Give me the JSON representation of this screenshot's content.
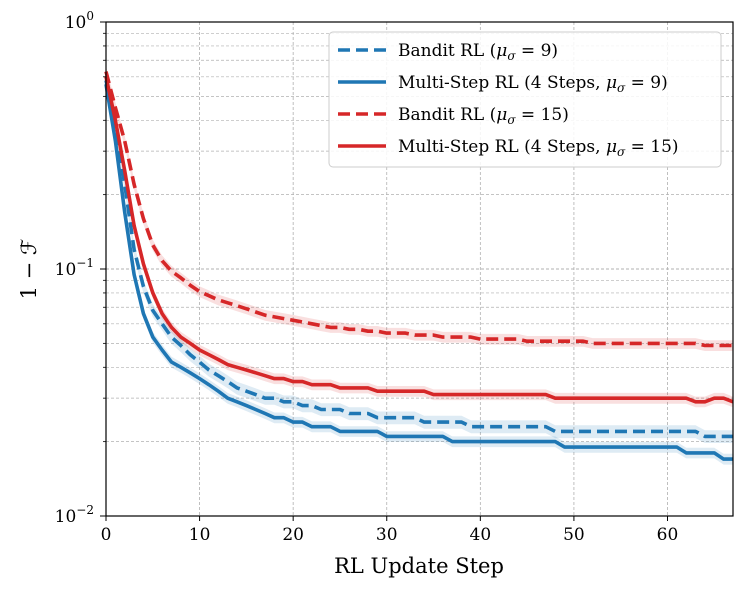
{
  "chart_data": {
    "type": "line",
    "title": "",
    "xlabel": "RL Update Step",
    "ylabel": "1 − ℱ",
    "xlim": [
      0,
      67
    ],
    "ylim": [
      0.01,
      1
    ],
    "yscale": "log",
    "grid": true,
    "legend_position": "top-right",
    "x_ticks": [
      0,
      10,
      20,
      30,
      40,
      50,
      60
    ],
    "x_tick_labels": [
      "0",
      "10",
      "20",
      "30",
      "40",
      "50",
      "60"
    ],
    "y_ticks": [
      0.01,
      0.1,
      1
    ],
    "y_tick_labels": [
      {
        "base": "10",
        "exp": "−2"
      },
      {
        "base": "10",
        "exp": "−1"
      },
      {
        "base": "10",
        "exp": "0"
      }
    ],
    "x": [
      0,
      1,
      2,
      3,
      4,
      5,
      6,
      7,
      8,
      9,
      10,
      11,
      12,
      13,
      14,
      15,
      16,
      17,
      18,
      19,
      20,
      21,
      22,
      23,
      24,
      25,
      26,
      27,
      28,
      29,
      30,
      31,
      32,
      33,
      34,
      35,
      36,
      37,
      38,
      39,
      40,
      41,
      42,
      43,
      44,
      45,
      46,
      47,
      48,
      49,
      50,
      51,
      52,
      53,
      54,
      55,
      56,
      57,
      58,
      59,
      60,
      61,
      62,
      63,
      64,
      65,
      66,
      67
    ],
    "series": [
      {
        "name": "Bandit RL (μσ = 9)",
        "legend_text": "Bandit RL (",
        "legend_mu": "μ",
        "legend_sigma": "σ",
        "legend_value": " = 9)",
        "color": "#1f77b4",
        "style": "dashed",
        "band": 0.06,
        "values": [
          0.58,
          0.39,
          0.22,
          0.12,
          0.085,
          0.068,
          0.06,
          0.053,
          0.049,
          0.045,
          0.042,
          0.039,
          0.037,
          0.035,
          0.033,
          0.032,
          0.031,
          0.03,
          0.03,
          0.029,
          0.029,
          0.028,
          0.028,
          0.027,
          0.027,
          0.027,
          0.026,
          0.026,
          0.026,
          0.025,
          0.025,
          0.025,
          0.025,
          0.025,
          0.024,
          0.024,
          0.024,
          0.024,
          0.024,
          0.023,
          0.023,
          0.023,
          0.023,
          0.023,
          0.023,
          0.023,
          0.023,
          0.023,
          0.022,
          0.022,
          0.022,
          0.022,
          0.022,
          0.022,
          0.022,
          0.022,
          0.022,
          0.022,
          0.022,
          0.022,
          0.022,
          0.022,
          0.022,
          0.022,
          0.021,
          0.021,
          0.021,
          0.021
        ]
      },
      {
        "name": "Multi-Step RL (4 Steps, μσ = 9)",
        "legend_text": "Multi-Step RL (4 Steps, ",
        "legend_mu": "μ",
        "legend_sigma": "σ",
        "legend_value": " = 9)",
        "color": "#1f77b4",
        "style": "solid",
        "band": 0.05,
        "values": [
          0.56,
          0.33,
          0.17,
          0.095,
          0.066,
          0.053,
          0.047,
          0.042,
          0.04,
          0.038,
          0.036,
          0.034,
          0.032,
          0.03,
          0.029,
          0.028,
          0.027,
          0.026,
          0.025,
          0.025,
          0.024,
          0.024,
          0.023,
          0.023,
          0.023,
          0.022,
          0.022,
          0.022,
          0.022,
          0.022,
          0.021,
          0.021,
          0.021,
          0.021,
          0.021,
          0.021,
          0.021,
          0.02,
          0.02,
          0.02,
          0.02,
          0.02,
          0.02,
          0.02,
          0.02,
          0.02,
          0.02,
          0.02,
          0.02,
          0.019,
          0.019,
          0.019,
          0.019,
          0.019,
          0.019,
          0.019,
          0.019,
          0.019,
          0.019,
          0.019,
          0.019,
          0.019,
          0.018,
          0.018,
          0.018,
          0.018,
          0.017,
          0.017
        ]
      },
      {
        "name": "Bandit RL (μσ = 15)",
        "legend_text": "Bandit RL (",
        "legend_mu": "μ",
        "legend_sigma": "σ",
        "legend_value": " = 15)",
        "color": "#d62728",
        "style": "dashed",
        "band": 0.05,
        "values": [
          0.63,
          0.45,
          0.33,
          0.22,
          0.16,
          0.125,
          0.108,
          0.098,
          0.092,
          0.086,
          0.081,
          0.078,
          0.075,
          0.073,
          0.071,
          0.069,
          0.067,
          0.065,
          0.064,
          0.063,
          0.062,
          0.061,
          0.06,
          0.059,
          0.058,
          0.058,
          0.057,
          0.057,
          0.056,
          0.056,
          0.055,
          0.055,
          0.055,
          0.054,
          0.054,
          0.054,
          0.053,
          0.053,
          0.053,
          0.053,
          0.052,
          0.052,
          0.052,
          0.052,
          0.052,
          0.051,
          0.051,
          0.051,
          0.051,
          0.051,
          0.051,
          0.051,
          0.05,
          0.05,
          0.05,
          0.05,
          0.05,
          0.05,
          0.05,
          0.05,
          0.05,
          0.05,
          0.05,
          0.05,
          0.049,
          0.049,
          0.049,
          0.049
        ]
      },
      {
        "name": "Multi-Step RL (4 Steps, μσ = 15)",
        "legend_text": "Multi-Step RL (4 Steps, ",
        "legend_mu": "μ",
        "legend_sigma": "σ",
        "legend_value": " = 15)",
        "color": "#d62728",
        "style": "solid",
        "band": 0.05,
        "values": [
          0.6,
          0.4,
          0.25,
          0.15,
          0.105,
          0.08,
          0.066,
          0.058,
          0.053,
          0.05,
          0.047,
          0.045,
          0.043,
          0.041,
          0.04,
          0.039,
          0.038,
          0.037,
          0.036,
          0.036,
          0.035,
          0.035,
          0.034,
          0.034,
          0.034,
          0.033,
          0.033,
          0.033,
          0.033,
          0.032,
          0.032,
          0.032,
          0.032,
          0.032,
          0.032,
          0.031,
          0.031,
          0.031,
          0.031,
          0.031,
          0.031,
          0.031,
          0.031,
          0.031,
          0.031,
          0.031,
          0.031,
          0.031,
          0.03,
          0.03,
          0.03,
          0.03,
          0.03,
          0.03,
          0.03,
          0.03,
          0.03,
          0.03,
          0.03,
          0.03,
          0.03,
          0.03,
          0.03,
          0.029,
          0.029,
          0.03,
          0.03,
          0.029
        ]
      }
    ]
  }
}
